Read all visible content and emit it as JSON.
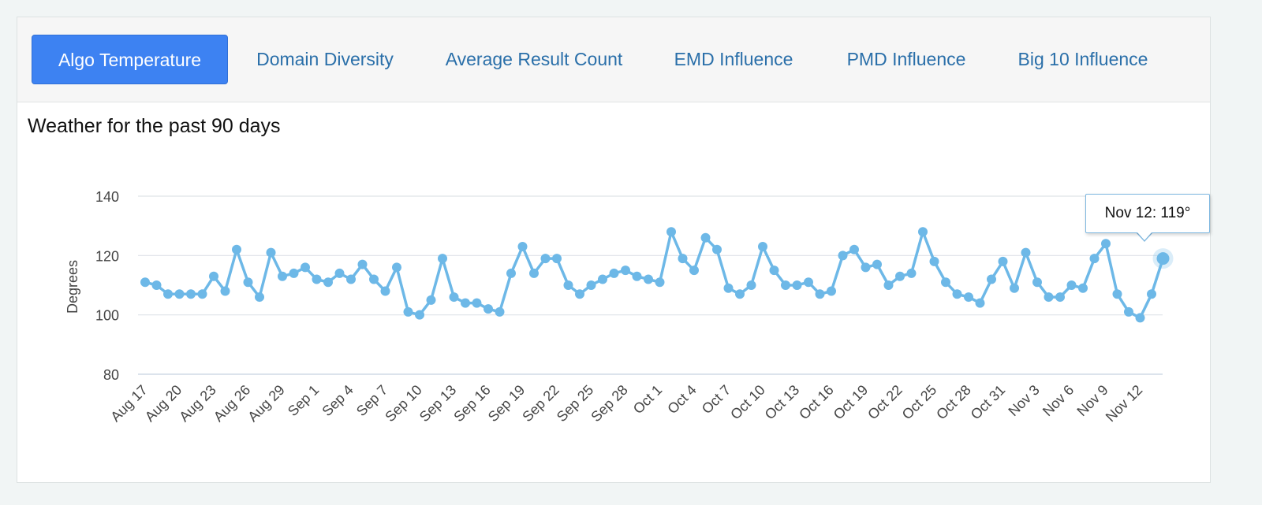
{
  "tabs": [
    {
      "label": "Algo Temperature",
      "active": true
    },
    {
      "label": "Domain Diversity",
      "active": false
    },
    {
      "label": "Average Result Count",
      "active": false
    },
    {
      "label": "EMD Influence",
      "active": false
    },
    {
      "label": "PMD Influence",
      "active": false
    },
    {
      "label": "Big 10 Influence",
      "active": false
    }
  ],
  "colors": {
    "accent": "#3d82f2",
    "tab_link": "#2a6fa9",
    "series": "#6db8e7",
    "grid": "#dfe3e8"
  },
  "tooltip": {
    "text": "Nov 12: 119°"
  },
  "chart_data": {
    "type": "line",
    "title": "Weather for the past 90 days",
    "ylabel": "Degrees",
    "xlabel": "",
    "ylim": [
      80,
      140
    ],
    "yticks": [
      80,
      100,
      120,
      140
    ],
    "grid": true,
    "tick_labels": [
      "Aug 17",
      "Aug 20",
      "Aug 23",
      "Aug 26",
      "Aug 29",
      "Sep 1",
      "Sep 4",
      "Sep 7",
      "Sep 10",
      "Sep 13",
      "Sep 16",
      "Sep 19",
      "Sep 22",
      "Sep 25",
      "Sep 28",
      "Oct 1",
      "Oct 4",
      "Oct 7",
      "Oct 10",
      "Oct 13",
      "Oct 16",
      "Oct 19",
      "Oct 22",
      "Oct 25",
      "Oct 28",
      "Oct 31",
      "Nov 3",
      "Nov 6",
      "Nov 9",
      "Nov 12"
    ],
    "series": [
      {
        "highlight_last": true,
        "values": [
          111,
          110,
          107,
          107,
          107,
          107,
          113,
          108,
          122,
          111,
          106,
          121,
          113,
          114,
          116,
          112,
          111,
          114,
          112,
          117,
          112,
          108,
          116,
          101,
          100,
          105,
          119,
          106,
          104,
          104,
          102,
          101,
          114,
          123,
          114,
          119,
          119,
          110,
          107,
          110,
          112,
          114,
          115,
          113,
          112,
          111,
          128,
          119,
          115,
          126,
          122,
          109,
          107,
          110,
          123,
          115,
          110,
          110,
          111,
          107,
          108,
          120,
          122,
          116,
          117,
          110,
          113,
          114,
          128,
          118,
          111,
          107,
          106,
          104,
          112,
          118,
          109,
          121,
          111,
          106,
          106,
          110,
          109,
          119,
          124,
          107,
          101,
          99,
          107,
          119
        ]
      }
    ]
  }
}
